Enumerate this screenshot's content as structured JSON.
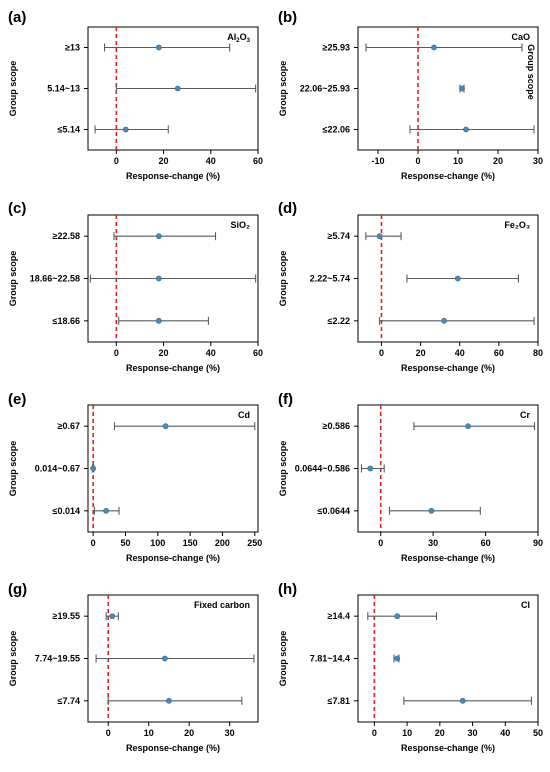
{
  "chart_data": [
    {
      "type": "scatter",
      "panel_label": "(a)",
      "variable_html": "Al<tspan dy=\"2\" font-size=\"6\">2</tspan><tspan dy=\"-2\">O</tspan><tspan dy=\"2\" font-size=\"6\">3</tspan>",
      "variable": "Al2O3",
      "xlabel": "Response-change (%)",
      "ylabel": "Group scope",
      "ylabel_side": "left",
      "xlim": [
        -12,
        60
      ],
      "xticks": [
        0,
        20,
        40,
        60
      ],
      "groups": [
        {
          "label": "≥13",
          "estimate": 18,
          "ci_low": -5,
          "ci_high": 48
        },
        {
          "label": "5.14~13",
          "estimate": 26,
          "ci_low": 0,
          "ci_high": 59
        },
        {
          "label": "≤5.14",
          "estimate": 4,
          "ci_low": -9,
          "ci_high": 22
        }
      ]
    },
    {
      "type": "scatter",
      "panel_label": "(b)",
      "variable": "CaO",
      "xlabel": "Response-change (%)",
      "ylabel": "Group scope",
      "ylabel_side": "both",
      "xlim": [
        -15,
        30
      ],
      "xticks": [
        -10,
        0,
        10,
        20,
        30
      ],
      "groups": [
        {
          "label": "≥25.93",
          "estimate": 4,
          "ci_low": -13,
          "ci_high": 26
        },
        {
          "label": "22.06~25.93",
          "estimate": 11,
          "ci_low": 10.5,
          "ci_high": 11.5
        },
        {
          "label": "≤22.06",
          "estimate": 12,
          "ci_low": -2,
          "ci_high": 29
        }
      ]
    },
    {
      "type": "scatter",
      "panel_label": "(c)",
      "variable": "SiO₂",
      "xlabel": "Response-change (%)",
      "ylabel": "Group scope",
      "ylabel_side": "left",
      "xlim": [
        -12,
        60
      ],
      "xticks": [
        0,
        20,
        40,
        60
      ],
      "groups": [
        {
          "label": "≥22.58",
          "estimate": 18,
          "ci_low": -1,
          "ci_high": 42
        },
        {
          "label": "18.66~22.58",
          "estimate": 18,
          "ci_low": -11,
          "ci_high": 59
        },
        {
          "label": "≤18.66",
          "estimate": 18,
          "ci_low": 1,
          "ci_high": 39
        }
      ]
    },
    {
      "type": "scatter",
      "panel_label": "(d)",
      "variable": "Fe₂O₃",
      "xlabel": "Response-change (%)",
      "ylabel": "Group scope",
      "ylabel_side": "left",
      "xlim": [
        -12,
        80
      ],
      "xticks": [
        0,
        20,
        40,
        60,
        80
      ],
      "groups": [
        {
          "label": "≥5.74",
          "estimate": -1,
          "ci_low": -8,
          "ci_high": 10
        },
        {
          "label": "2.22~5.74",
          "estimate": 39,
          "ci_low": 13,
          "ci_high": 70
        },
        {
          "label": "≤2.22",
          "estimate": 32,
          "ci_low": -1,
          "ci_high": 78
        }
      ]
    },
    {
      "type": "scatter",
      "panel_label": "(e)",
      "variable": "Cd",
      "xlabel": "Response-change (%)",
      "ylabel": "Group scope",
      "ylabel_side": "left",
      "xlim": [
        -8,
        255
      ],
      "xticks": [
        0,
        50,
        100,
        150,
        200,
        250
      ],
      "groups": [
        {
          "label": "≥0.67",
          "estimate": 112,
          "ci_low": 33,
          "ci_high": 250
        },
        {
          "label": "0.014~0.67",
          "estimate": 0,
          "ci_low": -1,
          "ci_high": 1
        },
        {
          "label": "≤0.014",
          "estimate": 20,
          "ci_low": 2,
          "ci_high": 40
        }
      ]
    },
    {
      "type": "scatter",
      "panel_label": "(f)",
      "variable": "Cr",
      "xlabel": "Response-change (%)",
      "ylabel": "Group scope",
      "ylabel_side": "left",
      "xlim": [
        -13,
        90
      ],
      "xticks": [
        0,
        30,
        60,
        90
      ],
      "groups": [
        {
          "label": "≥0.586",
          "estimate": 50,
          "ci_low": 19,
          "ci_high": 88
        },
        {
          "label": "0.0644~0.586",
          "estimate": -6,
          "ci_low": -11,
          "ci_high": 2
        },
        {
          "label": "≤0.0644",
          "estimate": 29,
          "ci_low": 5,
          "ci_high": 57
        }
      ]
    },
    {
      "type": "scatter",
      "panel_label": "(g)",
      "variable": "Fixed carbon",
      "xlabel": "Response-change (%)",
      "ylabel": "Group scope",
      "ylabel_side": "left",
      "xlim": [
        -5,
        37
      ],
      "xticks": [
        0,
        10,
        20,
        30
      ],
      "groups": [
        {
          "label": "≥19.55",
          "estimate": 1,
          "ci_low": -0.5,
          "ci_high": 2.5
        },
        {
          "label": "7.74~19.55",
          "estimate": 14,
          "ci_low": -3,
          "ci_high": 36
        },
        {
          "label": "≤7.74",
          "estimate": 15,
          "ci_low": 0,
          "ci_high": 33
        }
      ]
    },
    {
      "type": "scatter",
      "panel_label": "(h)",
      "variable": "Cl",
      "xlabel": "Response-change (%)",
      "ylabel": "Group scope",
      "ylabel_side": "left",
      "xlim": [
        -5,
        50
      ],
      "xticks": [
        0,
        10,
        20,
        30,
        40,
        50
      ],
      "groups": [
        {
          "label": "≥14.4",
          "estimate": 7,
          "ci_low": -2,
          "ci_high": 19
        },
        {
          "label": "7.81~14.4",
          "estimate": 7,
          "ci_low": 6,
          "ci_high": 7.5
        },
        {
          "label": "≤7.81",
          "estimate": 27,
          "ci_low": 9,
          "ci_high": 48
        }
      ]
    }
  ]
}
